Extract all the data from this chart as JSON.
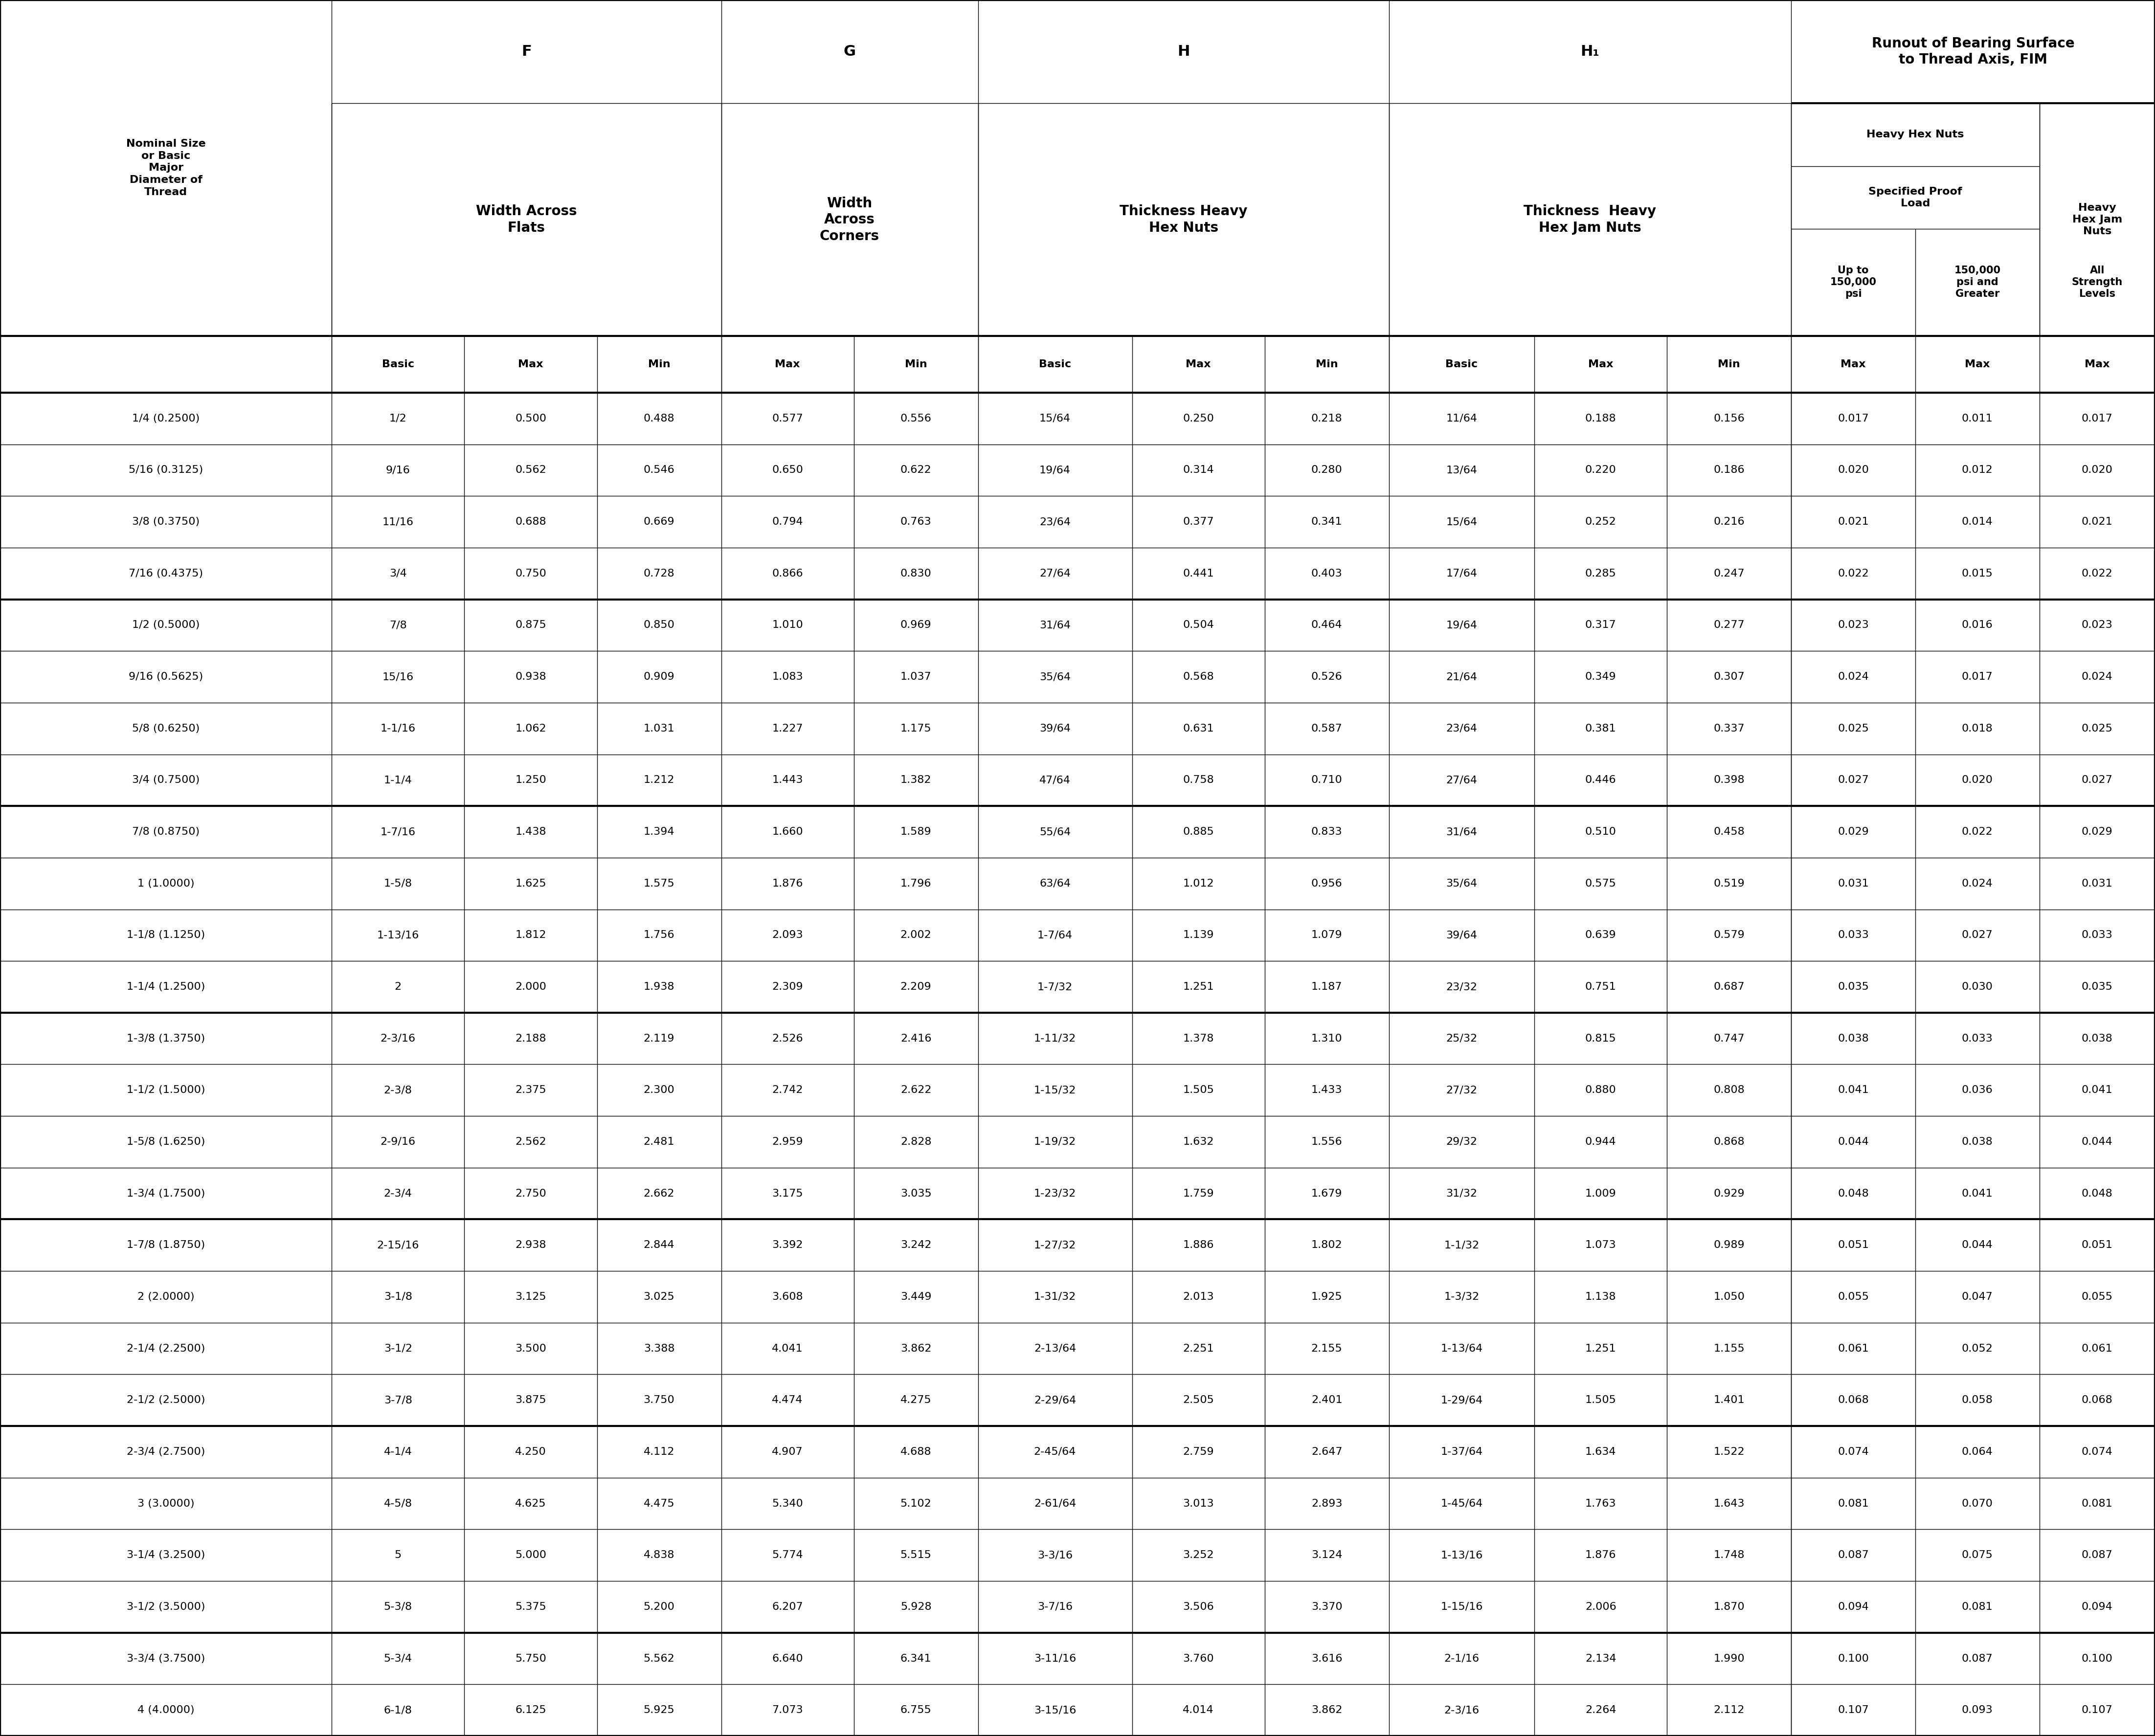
{
  "rows": [
    [
      "1/4 (0.2500)",
      "1/2",
      "0.500",
      "0.488",
      "0.577",
      "0.556",
      "15/64",
      "0.250",
      "0.218",
      "11/64",
      "0.188",
      "0.156",
      "0.017",
      "0.011",
      "0.017"
    ],
    [
      "5/16 (0.3125)",
      "9/16",
      "0.562",
      "0.546",
      "0.650",
      "0.622",
      "19/64",
      "0.314",
      "0.280",
      "13/64",
      "0.220",
      "0.186",
      "0.020",
      "0.012",
      "0.020"
    ],
    [
      "3/8 (0.3750)",
      "11/16",
      "0.688",
      "0.669",
      "0.794",
      "0.763",
      "23/64",
      "0.377",
      "0.341",
      "15/64",
      "0.252",
      "0.216",
      "0.021",
      "0.014",
      "0.021"
    ],
    [
      "7/16 (0.4375)",
      "3/4",
      "0.750",
      "0.728",
      "0.866",
      "0.830",
      "27/64",
      "0.441",
      "0.403",
      "17/64",
      "0.285",
      "0.247",
      "0.022",
      "0.015",
      "0.022"
    ],
    [
      "1/2 (0.5000)",
      "7/8",
      "0.875",
      "0.850",
      "1.010",
      "0.969",
      "31/64",
      "0.504",
      "0.464",
      "19/64",
      "0.317",
      "0.277",
      "0.023",
      "0.016",
      "0.023"
    ],
    [
      "9/16 (0.5625)",
      "15/16",
      "0.938",
      "0.909",
      "1.083",
      "1.037",
      "35/64",
      "0.568",
      "0.526",
      "21/64",
      "0.349",
      "0.307",
      "0.024",
      "0.017",
      "0.024"
    ],
    [
      "5/8 (0.6250)",
      "1-1/16",
      "1.062",
      "1.031",
      "1.227",
      "1.175",
      "39/64",
      "0.631",
      "0.587",
      "23/64",
      "0.381",
      "0.337",
      "0.025",
      "0.018",
      "0.025"
    ],
    [
      "3/4 (0.7500)",
      "1-1/4",
      "1.250",
      "1.212",
      "1.443",
      "1.382",
      "47/64",
      "0.758",
      "0.710",
      "27/64",
      "0.446",
      "0.398",
      "0.027",
      "0.020",
      "0.027"
    ],
    [
      "7/8 (0.8750)",
      "1-7/16",
      "1.438",
      "1.394",
      "1.660",
      "1.589",
      "55/64",
      "0.885",
      "0.833",
      "31/64",
      "0.510",
      "0.458",
      "0.029",
      "0.022",
      "0.029"
    ],
    [
      "1 (1.0000)",
      "1-5/8",
      "1.625",
      "1.575",
      "1.876",
      "1.796",
      "63/64",
      "1.012",
      "0.956",
      "35/64",
      "0.575",
      "0.519",
      "0.031",
      "0.024",
      "0.031"
    ],
    [
      "1-1/8 (1.1250)",
      "1-13/16",
      "1.812",
      "1.756",
      "2.093",
      "2.002",
      "1-7/64",
      "1.139",
      "1.079",
      "39/64",
      "0.639",
      "0.579",
      "0.033",
      "0.027",
      "0.033"
    ],
    [
      "1-1/4 (1.2500)",
      "2",
      "2.000",
      "1.938",
      "2.309",
      "2.209",
      "1-7/32",
      "1.251",
      "1.187",
      "23/32",
      "0.751",
      "0.687",
      "0.035",
      "0.030",
      "0.035"
    ],
    [
      "1-3/8 (1.3750)",
      "2-3/16",
      "2.188",
      "2.119",
      "2.526",
      "2.416",
      "1-11/32",
      "1.378",
      "1.310",
      "25/32",
      "0.815",
      "0.747",
      "0.038",
      "0.033",
      "0.038"
    ],
    [
      "1-1/2 (1.5000)",
      "2-3/8",
      "2.375",
      "2.300",
      "2.742",
      "2.622",
      "1-15/32",
      "1.505",
      "1.433",
      "27/32",
      "0.880",
      "0.808",
      "0.041",
      "0.036",
      "0.041"
    ],
    [
      "1-5/8 (1.6250)",
      "2-9/16",
      "2.562",
      "2.481",
      "2.959",
      "2.828",
      "1-19/32",
      "1.632",
      "1.556",
      "29/32",
      "0.944",
      "0.868",
      "0.044",
      "0.038",
      "0.044"
    ],
    [
      "1-3/4 (1.7500)",
      "2-3/4",
      "2.750",
      "2.662",
      "3.175",
      "3.035",
      "1-23/32",
      "1.759",
      "1.679",
      "31/32",
      "1.009",
      "0.929",
      "0.048",
      "0.041",
      "0.048"
    ],
    [
      "1-7/8 (1.8750)",
      "2-15/16",
      "2.938",
      "2.844",
      "3.392",
      "3.242",
      "1-27/32",
      "1.886",
      "1.802",
      "1-1/32",
      "1.073",
      "0.989",
      "0.051",
      "0.044",
      "0.051"
    ],
    [
      "2 (2.0000)",
      "3-1/8",
      "3.125",
      "3.025",
      "3.608",
      "3.449",
      "1-31/32",
      "2.013",
      "1.925",
      "1-3/32",
      "1.138",
      "1.050",
      "0.055",
      "0.047",
      "0.055"
    ],
    [
      "2-1/4 (2.2500)",
      "3-1/2",
      "3.500",
      "3.388",
      "4.041",
      "3.862",
      "2-13/64",
      "2.251",
      "2.155",
      "1-13/64",
      "1.251",
      "1.155",
      "0.061",
      "0.052",
      "0.061"
    ],
    [
      "2-1/2 (2.5000)",
      "3-7/8",
      "3.875",
      "3.750",
      "4.474",
      "4.275",
      "2-29/64",
      "2.505",
      "2.401",
      "1-29/64",
      "1.505",
      "1.401",
      "0.068",
      "0.058",
      "0.068"
    ],
    [
      "2-3/4 (2.7500)",
      "4-1/4",
      "4.250",
      "4.112",
      "4.907",
      "4.688",
      "2-45/64",
      "2.759",
      "2.647",
      "1-37/64",
      "1.634",
      "1.522",
      "0.074",
      "0.064",
      "0.074"
    ],
    [
      "3 (3.0000)",
      "4-5/8",
      "4.625",
      "4.475",
      "5.340",
      "5.102",
      "2-61/64",
      "3.013",
      "2.893",
      "1-45/64",
      "1.763",
      "1.643",
      "0.081",
      "0.070",
      "0.081"
    ],
    [
      "3-1/4 (3.2500)",
      "5",
      "5.000",
      "4.838",
      "5.774",
      "5.515",
      "3-3/16",
      "3.252",
      "3.124",
      "1-13/16",
      "1.876",
      "1.748",
      "0.087",
      "0.075",
      "0.087"
    ],
    [
      "3-1/2 (3.5000)",
      "5-3/8",
      "5.375",
      "5.200",
      "6.207",
      "5.928",
      "3-7/16",
      "3.506",
      "3.370",
      "1-15/16",
      "2.006",
      "1.870",
      "0.094",
      "0.081",
      "0.094"
    ],
    [
      "3-3/4 (3.7500)",
      "5-3/4",
      "5.750",
      "5.562",
      "6.640",
      "6.341",
      "3-11/16",
      "3.760",
      "3.616",
      "2-1/16",
      "2.134",
      "1.990",
      "0.100",
      "0.087",
      "0.100"
    ],
    [
      "4 (4.0000)",
      "6-1/8",
      "6.125",
      "5.925",
      "7.073",
      "6.755",
      "3-15/16",
      "4.014",
      "3.862",
      "2-3/16",
      "2.264",
      "2.112",
      "0.107",
      "0.093",
      "0.107"
    ]
  ],
  "group_separators": [
    4,
    8,
    12,
    16,
    20,
    24
  ],
  "col_widths_raw": [
    1.55,
    0.62,
    0.62,
    0.58,
    0.62,
    0.58,
    0.72,
    0.62,
    0.58,
    0.68,
    0.62,
    0.58,
    0.58,
    0.58,
    0.54
  ],
  "bg_color": "#ffffff",
  "border_color": "#000000",
  "text_color": "#000000",
  "thick_lw": 3.0,
  "thin_lw": 1.0,
  "data_fontsize": 16,
  "header_fontsize_large": 22,
  "header_fontsize_med": 20,
  "header_fontsize_small": 16,
  "header_fontsize_tiny": 15
}
